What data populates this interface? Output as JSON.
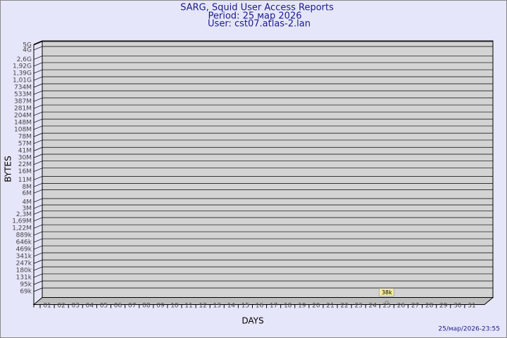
{
  "chart_data": {
    "type": "bar",
    "title": "SARG, Squid User Access Reports",
    "subtitle": "Period: 25 мар 2026",
    "user": "User: cst07.atlas-2.lan",
    "y_label": "BYTES",
    "x_label": "DAYS",
    "footer": "25/мар/2026-23:55",
    "categories": [
      "01",
      "02",
      "03",
      "04",
      "05",
      "06",
      "07",
      "08",
      "09",
      "10",
      "11",
      "12",
      "13",
      "14",
      "15",
      "16",
      "17",
      "18",
      "19",
      "20",
      "21",
      "22",
      "23",
      "24",
      "25",
      "26",
      "27",
      "28",
      "29",
      "30",
      "31"
    ],
    "values": [
      null,
      null,
      null,
      null,
      null,
      null,
      null,
      null,
      null,
      null,
      null,
      null,
      null,
      null,
      null,
      null,
      null,
      null,
      null,
      null,
      null,
      null,
      null,
      null,
      38000,
      null,
      null,
      null,
      null,
      null,
      null
    ],
    "value_labels": [
      null,
      null,
      null,
      null,
      null,
      null,
      null,
      null,
      null,
      null,
      null,
      null,
      null,
      null,
      null,
      null,
      null,
      null,
      null,
      null,
      null,
      null,
      null,
      null,
      "38k",
      null,
      null,
      null,
      null,
      null,
      null
    ],
    "color": "#f5e99a",
    "log_scale": true,
    "grid": true,
    "ylim": [
      37000,
      5000000000
    ],
    "yticks": [
      {
        "value": 69000,
        "label": "69k"
      },
      {
        "value": 95000,
        "label": "95k"
      },
      {
        "value": 131000,
        "label": "131k"
      },
      {
        "value": 180000,
        "label": "180k"
      },
      {
        "value": 247000,
        "label": "247k"
      },
      {
        "value": 341000,
        "label": "341k"
      },
      {
        "value": 469000,
        "label": "469k"
      },
      {
        "value": 646000,
        "label": "646k"
      },
      {
        "value": 889000,
        "label": "889k"
      },
      {
        "value": 1220000,
        "label": "1,22M"
      },
      {
        "value": 1690000,
        "label": "1,69M"
      },
      {
        "value": 2300000,
        "label": "2,3M"
      },
      {
        "value": 3000000,
        "label": "3M"
      },
      {
        "value": 4000000,
        "label": "4M"
      },
      {
        "value": 6000000,
        "label": "6M"
      },
      {
        "value": 8000000,
        "label": "8M"
      },
      {
        "value": 11000000,
        "label": "11M"
      },
      {
        "value": 16000000,
        "label": "16M"
      },
      {
        "value": 22000000,
        "label": "22M"
      },
      {
        "value": 30000000,
        "label": "30M"
      },
      {
        "value": 41000000,
        "label": "41M"
      },
      {
        "value": 57000000,
        "label": "57M"
      },
      {
        "value": 78000000,
        "label": "78M"
      },
      {
        "value": 108000000,
        "label": "108M"
      },
      {
        "value": 148000000,
        "label": "148M"
      },
      {
        "value": 204000000,
        "label": "204M"
      },
      {
        "value": 281000000,
        "label": "281M"
      },
      {
        "value": 387000000,
        "label": "387M"
      },
      {
        "value": 533000000,
        "label": "533M"
      },
      {
        "value": 734000000,
        "label": "734M"
      },
      {
        "value": 1010000000,
        "label": "1,01G"
      },
      {
        "value": 1390000000,
        "label": "1,39G"
      },
      {
        "value": 1920000000,
        "label": "1,92G"
      },
      {
        "value": 2600000000,
        "label": "2,6G"
      },
      {
        "value": 4000000000,
        "label": "4G"
      },
      {
        "value": 5000000000,
        "label": "5G"
      }
    ]
  }
}
